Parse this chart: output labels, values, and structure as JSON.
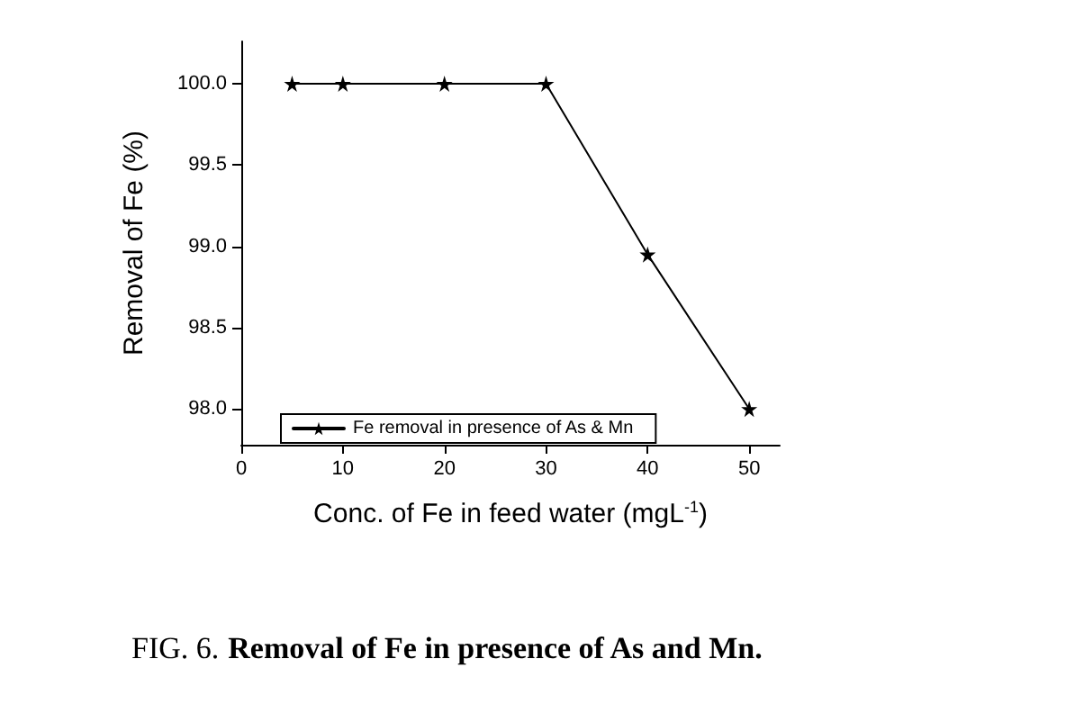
{
  "chart_data": {
    "type": "line",
    "title": "FIG. 6. Removal of Fe in presence of As and Mn.",
    "xlabel": "Conc. of Fe in feed water (mgL$^{-1}$)",
    "ylabel": "Removal of Fe (%)",
    "x": [
      5,
      10,
      20,
      30,
      40,
      50
    ],
    "series": [
      {
        "name": "Fe removal in presence of As & Mn",
        "color": "#000000",
        "values": [
          100.0,
          100.0,
          100.0,
          100.0,
          98.95,
          98.0
        ]
      }
    ],
    "xlim": [
      0,
      53
    ],
    "xticks": [
      0,
      10,
      20,
      30,
      40,
      50
    ],
    "ylim": [
      97.78,
      100.26
    ],
    "yticks": [
      {
        "value": 98,
        "label": "98.0"
      },
      98.5,
      {
        "value": 99,
        "label": "99.0"
      },
      99.5,
      {
        "value": 100,
        "label": "100.0"
      }
    ],
    "legend": "bottom left",
    "marker": "star",
    "line_style": "solid",
    "grid": false
  }
}
